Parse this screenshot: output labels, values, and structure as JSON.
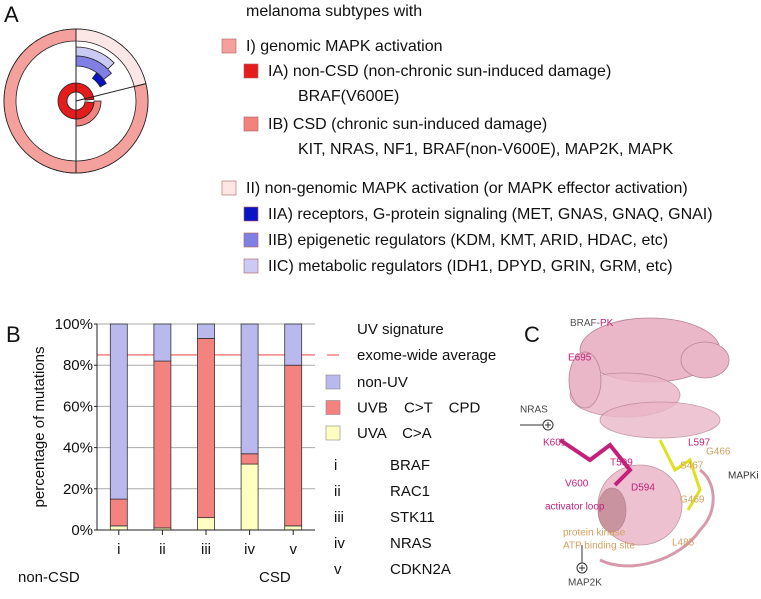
{
  "panel_a": {
    "letter": "A",
    "heading": "melanoma subtypes with",
    "items": [
      {
        "text": "I) genomic MAPK activation",
        "color": "#f4a09c"
      },
      {
        "text": "IA) non-CSD (non-chronic sun-induced damage)",
        "color": "#e51c1c",
        "detail": "BRAF(V600E)"
      },
      {
        "text": "IB) CSD (chronic sun-induced damage)",
        "color": "#f2827d",
        "detail": "KIT, NRAS, NF1, BRAF(non-V600E), MAP2K, MAPK"
      },
      {
        "text": "II) non-genomic MAPK activation (or MAPK effector activation)",
        "color": "#fde6e6"
      },
      {
        "text": "IIA) receptors, G-protein signaling (MET, GNAS, GNAQ, GNAI)",
        "color": "#0a14c4"
      },
      {
        "text": "IIB) epigenetic regulators (KDM, KMT, ARID, HDAC, etc)",
        "color": "#7f7fe6"
      },
      {
        "text": "IIC) metabolic regulators (IDH1, DPYD, GRIN, GRM, etc)",
        "color": "#cacaf2"
      }
    ]
  },
  "chart_data": {
    "type": "bar",
    "stacked": true,
    "panel_label": "B",
    "ylabel": "percentage of mutations",
    "categories": [
      "i",
      "ii",
      "iii",
      "iv",
      "v"
    ],
    "series": [
      {
        "name": "non-UV",
        "color": "#b9b9ee",
        "values": [
          85,
          18,
          7,
          63,
          20
        ]
      },
      {
        "name": "UVB C>T CPD",
        "color": "#f4827e",
        "values": [
          13,
          81,
          87,
          5,
          78
        ]
      },
      {
        "name": "UVA C>A",
        "color": "#ffffc2",
        "values": [
          2,
          1,
          6,
          32,
          2
        ]
      }
    ],
    "legend_title": "UV signature",
    "reference_line": {
      "name": "exome-wide average",
      "value": 85,
      "color": "#f4827e"
    },
    "annotations": [
      "non-CSD",
      "CSD"
    ],
    "gene_key": [
      {
        "numeral": "i",
        "gene": "BRAF"
      },
      {
        "numeral": "ii",
        "gene": "RAC1"
      },
      {
        "numeral": "iii",
        "gene": "STK11"
      },
      {
        "numeral": "iv",
        "gene": "NRAS"
      },
      {
        "numeral": "v",
        "gene": "CDKN2A"
      }
    ],
    "ylim": [
      0,
      100
    ],
    "yticks": [
      {
        "value": 0,
        "label": "0%"
      },
      {
        "value": 20,
        "label": "20%"
      },
      {
        "value": 40,
        "label": "40%"
      },
      {
        "value": 60,
        "label": "60%"
      },
      {
        "value": 80,
        "label": "80%"
      },
      {
        "value": 100,
        "label": "100%"
      }
    ],
    "grid": true
  },
  "panel_c": {
    "letter": "C",
    "title_prefix": "BRAF-",
    "title_suffix": "PK",
    "labels": [
      "E695",
      "NRAS",
      "K601",
      "L597",
      "G466",
      "T599",
      "S467",
      "MAPKi",
      "V600",
      "D594",
      "activator loop",
      "G469",
      "protein kinase",
      "ATP binding site",
      "L485",
      "MAP2K"
    ]
  }
}
